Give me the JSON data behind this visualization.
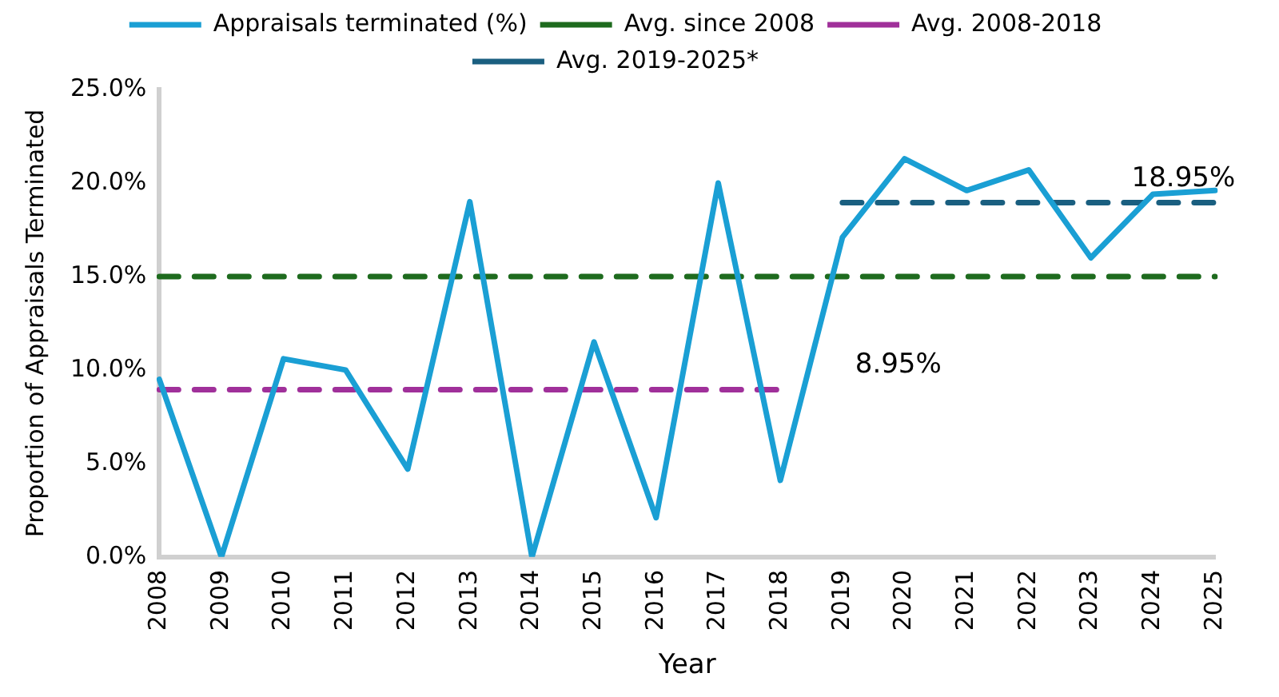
{
  "chart_data": {
    "type": "line",
    "xlabel": "Year",
    "ylabel": "Proportion of Appraisals Terminated",
    "categories": [
      "2008",
      "2009",
      "2010",
      "2011",
      "2012",
      "2013",
      "2014",
      "2015",
      "2016",
      "2017",
      "2018",
      "2019",
      "2020",
      "2021",
      "2022",
      "2023",
      "2024",
      "2025"
    ],
    "series": [
      {
        "name": "Appraisals terminated (%)",
        "color": "#1a9fd4",
        "values": [
          9.5,
          0,
          10.6,
          10.0,
          4.7,
          19.0,
          0,
          11.5,
          2.1,
          20.0,
          4.1,
          17.1,
          21.3,
          19.6,
          20.7,
          16.0,
          19.4,
          19.6
        ]
      },
      {
        "name": "Avg. since 2008",
        "color": "#1e6b1e",
        "line_style": "dashed",
        "values": [
          15,
          15,
          15,
          15,
          15,
          15,
          15,
          15,
          15,
          15,
          15,
          15,
          15,
          15,
          15,
          15,
          15,
          15
        ]
      },
      {
        "name": "Avg. 2008-2018",
        "color": "#a0309a",
        "line_style": "dashed",
        "values": [
          8.95,
          8.95,
          8.95,
          8.95,
          8.95,
          8.95,
          8.95,
          8.95,
          8.95,
          8.95,
          8.95,
          null,
          null,
          null,
          null,
          null,
          null,
          null
        ]
      },
      {
        "name": "Avg. 2019-2025*",
        "color": "#1a5f80",
        "line_style": "dashed",
        "values": [
          null,
          null,
          null,
          null,
          null,
          null,
          null,
          null,
          null,
          null,
          null,
          18.95,
          18.95,
          18.95,
          18.95,
          18.95,
          18.95,
          18.95
        ]
      }
    ],
    "ylim": [
      0,
      25
    ],
    "yticks": [
      {
        "value": 0,
        "label": "0.0%"
      },
      {
        "value": 5,
        "label": "5.0%"
      },
      {
        "value": 10,
        "label": "10.0%"
      },
      {
        "value": 15,
        "label": "15.0%"
      },
      {
        "value": 20,
        "label": "20.0%"
      },
      {
        "value": 25,
        "label": "25.0%"
      }
    ],
    "annotations": [
      "18.95%",
      "8.95%"
    ],
    "grid": false,
    "legend": "top",
    "marker": "none",
    "line_style": "solid"
  }
}
